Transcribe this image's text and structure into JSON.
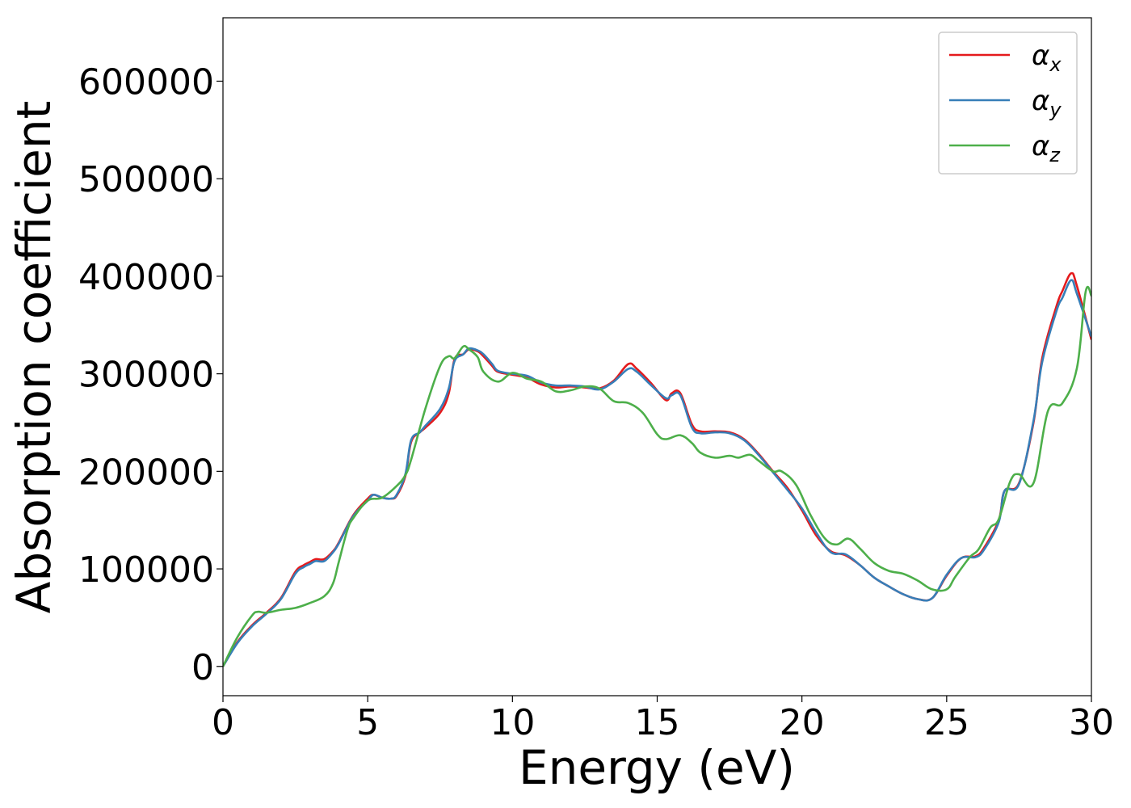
{
  "chart_data": {
    "type": "line",
    "title": "",
    "xlabel": "Energy (eV)",
    "ylabel": "Absorption coefficient",
    "xlim": [
      0,
      30
    ],
    "ylim": [
      -30000,
      665000
    ],
    "xticks": [
      0,
      5,
      10,
      15,
      20,
      25,
      30
    ],
    "yticks": [
      0,
      100000,
      200000,
      300000,
      400000,
      500000,
      600000
    ],
    "grid": false,
    "legend_position": "top-right",
    "series": [
      {
        "name": "α_x",
        "legend_base": "α",
        "legend_sub": "x",
        "color": "#e41a1c",
        "x": [
          0,
          0.5,
          1,
          1.5,
          2,
          2.5,
          2.8,
          3,
          3.2,
          3.5,
          3.8,
          4,
          4.5,
          5,
          5.2,
          5.5,
          5.8,
          6,
          6.3,
          6.5,
          6.8,
          7,
          7.5,
          7.8,
          8,
          8.3,
          8.5,
          8.8,
          9,
          9.3,
          9.5,
          10,
          10.5,
          11,
          11.5,
          12,
          12.5,
          13,
          13.5,
          14,
          14.3,
          14.8,
          15.3,
          15.5,
          15.8,
          16.2,
          16.5,
          17,
          17.5,
          18,
          18.5,
          19,
          19.5,
          20,
          20.5,
          21,
          21.5,
          22,
          22.5,
          23,
          23.5,
          24,
          24.5,
          25,
          25.5,
          26,
          26.3,
          26.8,
          27,
          27.5,
          28,
          28.3,
          28.8,
          29,
          29.3,
          29.5,
          30
        ],
        "y": [
          0,
          25000,
          42000,
          55000,
          70000,
          97000,
          104000,
          107000,
          110000,
          110000,
          118000,
          127000,
          155000,
          172000,
          176000,
          173000,
          172000,
          175000,
          195000,
          230000,
          240000,
          245000,
          260000,
          280000,
          315000,
          320000,
          325000,
          323000,
          318000,
          308000,
          302000,
          299000,
          296000,
          289000,
          286000,
          287000,
          286000,
          285000,
          293000,
          310000,
          305000,
          290000,
          273000,
          280000,
          280000,
          248000,
          241000,
          241000,
          240000,
          233000,
          218000,
          200000,
          183000,
          160000,
          134000,
          118000,
          114000,
          104000,
          91000,
          82000,
          74000,
          69000,
          70000,
          93000,
          111000,
          113000,
          122000,
          150000,
          180000,
          188000,
          250000,
          316000,
          370000,
          385000,
          403000,
          390000,
          335000
        ]
      },
      {
        "name": "α_y",
        "legend_base": "α",
        "legend_sub": "y",
        "color": "#377eb8",
        "x": [
          0,
          0.5,
          1,
          1.5,
          2,
          2.5,
          2.8,
          3,
          3.2,
          3.5,
          3.8,
          4,
          4.5,
          5,
          5.2,
          5.5,
          5.8,
          6,
          6.3,
          6.5,
          6.8,
          7,
          7.5,
          7.8,
          8,
          8.3,
          8.5,
          8.8,
          9,
          9.3,
          9.5,
          10,
          10.5,
          11,
          11.5,
          12,
          12.5,
          13,
          13.5,
          14,
          14.3,
          14.8,
          15.3,
          15.5,
          15.8,
          16.2,
          16.5,
          17,
          17.5,
          18,
          18.5,
          19,
          19.5,
          20,
          20.5,
          21,
          21.5,
          22,
          22.5,
          23,
          23.5,
          24,
          24.5,
          25,
          25.5,
          26,
          26.3,
          26.8,
          27,
          27.5,
          28,
          28.3,
          28.8,
          29,
          29.3,
          29.5,
          30
        ],
        "y": [
          0,
          24000,
          41000,
          54000,
          69000,
          95000,
          102000,
          105000,
          108000,
          108000,
          117000,
          126000,
          154000,
          170000,
          176000,
          173000,
          172000,
          176000,
          197000,
          232000,
          240000,
          247000,
          264000,
          285000,
          313000,
          320000,
          326000,
          324000,
          320000,
          310000,
          303000,
          300000,
          298000,
          291000,
          288000,
          288000,
          287000,
          284000,
          292000,
          305000,
          302000,
          288000,
          275000,
          278000,
          278000,
          245000,
          239000,
          240000,
          239000,
          232000,
          217000,
          199000,
          181000,
          162000,
          137000,
          117000,
          115000,
          104000,
          91000,
          82000,
          74000,
          69000,
          70000,
          94000,
          111000,
          112000,
          120000,
          148000,
          180000,
          187000,
          252000,
          312000,
          365000,
          378000,
          396000,
          382000,
          338000
        ]
      },
      {
        "name": "α_z",
        "legend_base": "α",
        "legend_sub": "z",
        "color": "#4daf4a",
        "x": [
          0,
          0.5,
          1,
          1.2,
          1.5,
          2,
          2.5,
          3,
          3.5,
          3.8,
          4,
          4.3,
          4.5,
          5,
          5.5,
          6,
          6.3,
          6.5,
          7,
          7.5,
          7.8,
          8,
          8.3,
          8.5,
          8.8,
          9,
          9.5,
          10,
          10.5,
          11,
          11.5,
          12,
          12.5,
          13,
          13.5,
          14,
          14.5,
          15,
          15.3,
          15.8,
          16.2,
          16.5,
          17,
          17.5,
          17.8,
          18.2,
          18.5,
          19,
          19.3,
          19.8,
          20.3,
          20.8,
          21.2,
          21.6,
          22,
          22.5,
          23,
          23.5,
          24,
          24.5,
          25,
          25.3,
          25.8,
          26.1,
          26.5,
          26.8,
          27.2,
          27.5,
          28,
          28.5,
          29,
          29.5,
          29.8,
          30
        ],
        "y": [
          0,
          30000,
          52000,
          56000,
          55000,
          58000,
          60000,
          65000,
          72000,
          85000,
          107000,
          140000,
          152000,
          170000,
          173000,
          185000,
          196000,
          212000,
          265000,
          308000,
          318000,
          316000,
          328000,
          325000,
          317000,
          302000,
          292000,
          301000,
          295000,
          292000,
          282000,
          283000,
          287000,
          285000,
          272000,
          270000,
          260000,
          238000,
          233000,
          237000,
          229000,
          219000,
          214000,
          216000,
          214000,
          217000,
          211000,
          200000,
          200000,
          186000,
          155000,
          131000,
          125000,
          131000,
          121000,
          106000,
          98000,
          95000,
          88000,
          79000,
          79000,
          92000,
          112000,
          120000,
          142000,
          151000,
          190000,
          197000,
          188000,
          262000,
          270000,
          306000,
          384000,
          380000
        ]
      }
    ]
  }
}
